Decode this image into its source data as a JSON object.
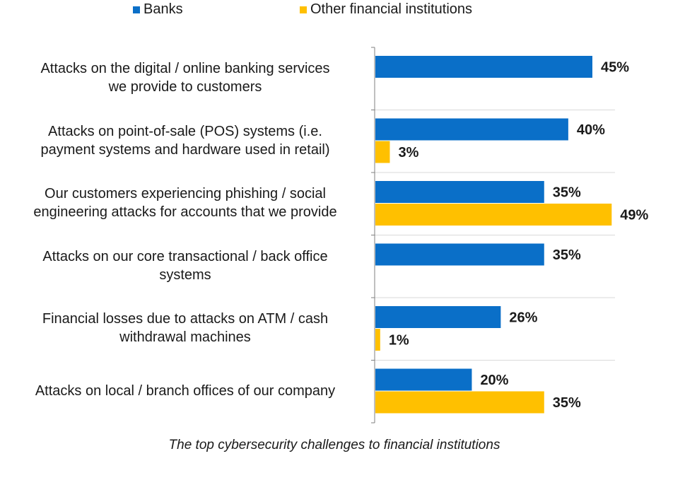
{
  "caption": "The top cybersecurity challenges to financial institutions",
  "colors": {
    "banks": "#0a6fc8",
    "other": "#ffc000",
    "axis": "#7f7f7f",
    "grid": "#d9d9d9"
  },
  "chart_data": {
    "type": "bar",
    "orientation": "horizontal",
    "title": "",
    "xlabel": "",
    "ylabel": "",
    "legend_position": "top",
    "categories": [
      [
        "Attacks on the digital / online banking services",
        "we provide to customers"
      ],
      [
        "Attacks on point-of-sale (POS) systems (i.e.",
        "payment systems and hardware used in retail)"
      ],
      [
        "Our customers experiencing phishing / social",
        "engineering attacks for accounts that we provide"
      ],
      [
        "Attacks on our core transactional / back office",
        "systems"
      ],
      [
        "Financial losses due to attacks on ATM / cash",
        "withdrawal machines"
      ],
      [
        "Attacks on local / branch offices of our company"
      ]
    ],
    "series": [
      {
        "name": "Banks",
        "values": [
          45,
          40,
          35,
          35,
          26,
          20
        ],
        "labels": [
          "45%",
          "40%",
          "35%",
          "35%",
          "26%",
          "20%"
        ]
      },
      {
        "name": "Other financial institutions",
        "values": [
          null,
          3,
          49,
          null,
          1,
          35
        ],
        "labels": [
          null,
          "3%",
          "49%",
          null,
          "1%",
          "35%"
        ]
      }
    ],
    "xlim": [
      0,
      50
    ]
  }
}
